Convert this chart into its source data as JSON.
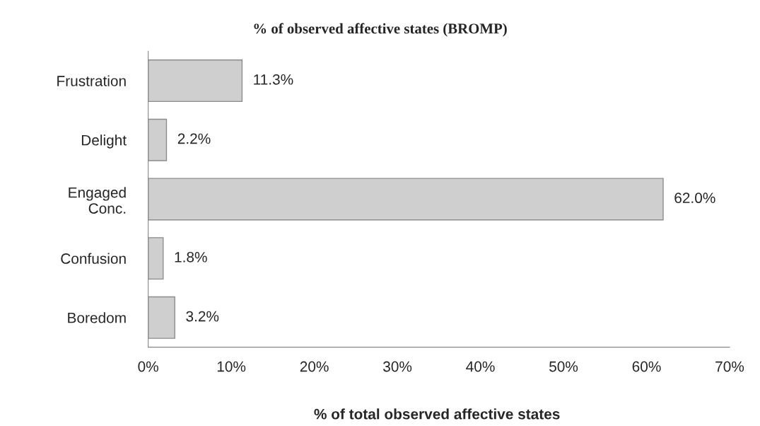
{
  "chart_data": {
    "type": "bar",
    "orientation": "horizontal",
    "title": "% of observed affective states (BROMP)",
    "xlabel": "% of total observed affective states",
    "categories": [
      "Frustration",
      "Delight",
      "Engaged\nConc.",
      "Confusion",
      "Boredom"
    ],
    "values": [
      11.3,
      2.2,
      62.0,
      1.8,
      3.2
    ],
    "value_labels": [
      "11.3%",
      "2.2%",
      "62.0%",
      "1.8%",
      "3.2%"
    ],
    "color": "#cfcfcf",
    "xlim": [
      0,
      70
    ],
    "xticks": [
      {
        "value": 0,
        "label": "0%"
      },
      {
        "value": 10,
        "label": "10%"
      },
      {
        "value": 20,
        "label": "20%"
      },
      {
        "value": 30,
        "label": "30%"
      },
      {
        "value": 40,
        "label": "40%"
      },
      {
        "value": 50,
        "label": "50%"
      },
      {
        "value": 60,
        "label": "60%"
      },
      {
        "value": 70,
        "label": "70%"
      }
    ],
    "grid": false,
    "legend": false
  }
}
